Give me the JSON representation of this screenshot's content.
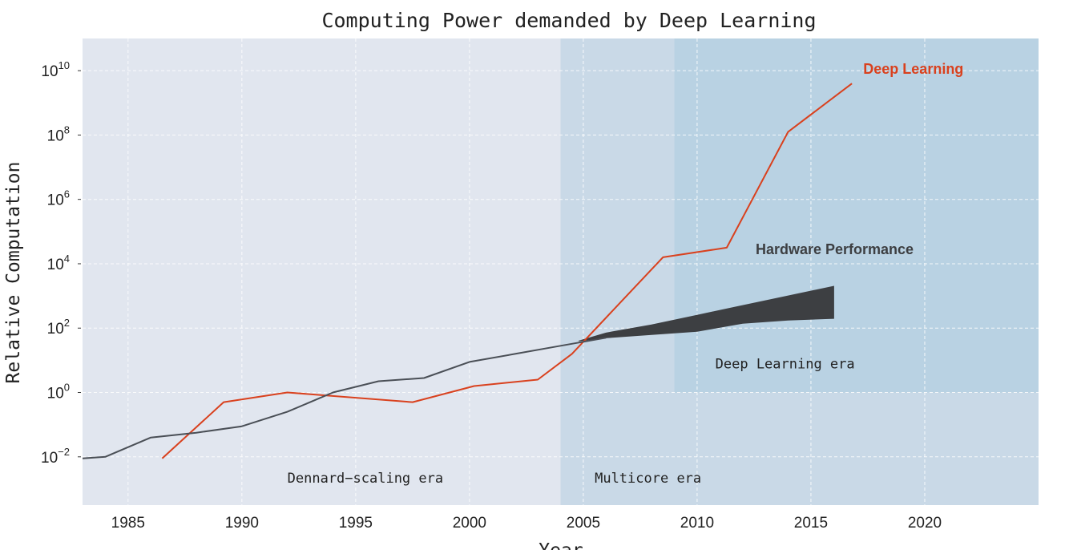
{
  "chart_data": {
    "type": "line",
    "title": "Computing Power demanded by Deep Learning",
    "xlabel": "Year",
    "ylabel": "Relative Computation",
    "xlim": [
      1983,
      2025
    ],
    "ylim_log10": [
      -3.5,
      11
    ],
    "y_scale": "log",
    "grid": true,
    "x_ticks": [
      {
        "value": 1985,
        "label": "1985"
      },
      {
        "value": 1990,
        "label": "1990"
      },
      {
        "value": 1995,
        "label": "1995"
      },
      {
        "value": 2000,
        "label": "2000"
      },
      {
        "value": 2005,
        "label": "2005"
      },
      {
        "value": 2010,
        "label": "2010"
      },
      {
        "value": 2015,
        "label": "2015"
      },
      {
        "value": 2020,
        "label": "2020"
      }
    ],
    "y_ticks": [
      {
        "exp": -2,
        "base": "10",
        "sup": "−2"
      },
      {
        "exp": 0,
        "base": "10",
        "sup": "0"
      },
      {
        "exp": 2,
        "base": "10",
        "sup": "2"
      },
      {
        "exp": 4,
        "base": "10",
        "sup": "4"
      },
      {
        "exp": 6,
        "base": "10",
        "sup": "6"
      },
      {
        "exp": 8,
        "base": "10",
        "sup": "8"
      },
      {
        "exp": 10,
        "base": "10",
        "sup": "10"
      }
    ],
    "eras": [
      {
        "label": "Dennard−scaling era",
        "x_from": 1983,
        "x_to": 2004,
        "y_from_log10": -3.5,
        "y_to_log10": 11,
        "color": "#e1e6ef",
        "label_x": 1992,
        "label_y_log10": -2.8
      },
      {
        "label": "Multicore era",
        "x_from": 2004,
        "x_to": 2025,
        "y_from_log10": -3.5,
        "y_to_log10": 11,
        "color": "#c9d9e7",
        "label_x": 2005.5,
        "label_y_log10": -2.8
      },
      {
        "label": "Deep Learning era",
        "x_from": 2009,
        "x_to": 2025,
        "y_from_log10": 0,
        "y_to_log10": 11,
        "color": "#b9d2e3",
        "label_x": 2010.8,
        "label_y_log10": 0.75
      }
    ],
    "series": [
      {
        "name": "Deep Learning",
        "color": "#d9411e",
        "label_x": 2017.3,
        "label_y_log10": 9.9,
        "x": [
          1986.5,
          1989.2,
          1992,
          1997.5,
          2000.2,
          2003,
          2004.5,
          2008.5,
          2011.3,
          2014,
          2016.8
        ],
        "y_log10": [
          -2.05,
          -0.3,
          0,
          -0.3,
          0.2,
          0.4,
          1.2,
          4.2,
          4.5,
          8.1,
          9.6
        ]
      },
      {
        "name": "",
        "color": "#4a4f56",
        "x": [
          1983,
          1984,
          1986,
          1988,
          1990,
          1992,
          1994,
          1996,
          1998,
          2000,
          2002,
          2004,
          2006
        ],
        "y_log10": [
          -2.05,
          -2.0,
          -1.4,
          -1.25,
          -1.05,
          -0.6,
          0,
          0.35,
          0.45,
          0.95,
          1.2,
          1.45,
          1.7
        ]
      }
    ],
    "bands": [
      {
        "name": "Hardware Performance",
        "color": "#3d3f42",
        "label_x": 2017.5,
        "label_y_log10": 4.3,
        "x": [
          2004.8,
          2006,
          2008,
          2010,
          2012,
          2014,
          2016
        ],
        "upper_log10": [
          1.6,
          1.85,
          2.1,
          2.4,
          2.7,
          3.0,
          3.3
        ],
        "lower_log10": [
          1.6,
          1.7,
          1.8,
          1.9,
          2.15,
          2.25,
          2.3
        ]
      }
    ]
  }
}
